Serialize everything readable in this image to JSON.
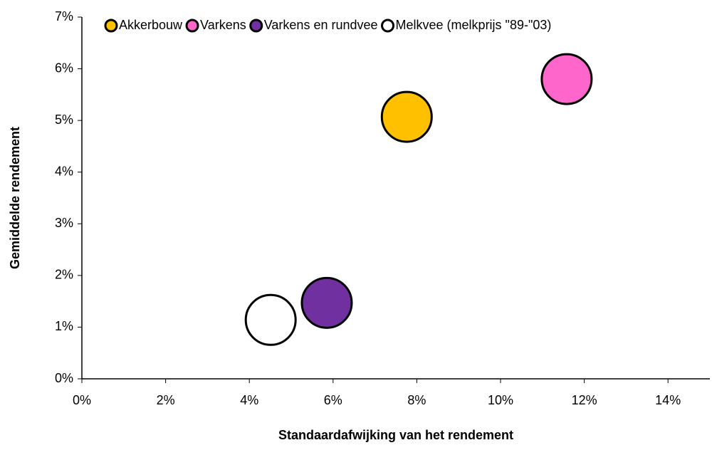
{
  "chart_data": {
    "type": "scatter",
    "xlabel": "Standaardafwijking van het rendement",
    "ylabel": "Gemiddelde rendement",
    "xlim": [
      0,
      15
    ],
    "xticks": [
      {
        "value": 0,
        "label": "0%"
      },
      {
        "value": 2,
        "label": "2%"
      },
      {
        "value": 4,
        "label": "4%"
      },
      {
        "value": 6,
        "label": "6%"
      },
      {
        "value": 8,
        "label": "8%"
      },
      {
        "value": 10,
        "label": "10%"
      },
      {
        "value": 12,
        "label": "12%"
      },
      {
        "value": 14,
        "label": "14%"
      }
    ],
    "ylim": [
      0,
      7
    ],
    "yticks": [
      {
        "value": 0,
        "label": "0%"
      },
      {
        "value": 1,
        "label": "1%"
      },
      {
        "value": 2,
        "label": "2%"
      },
      {
        "value": 3,
        "label": "3%"
      },
      {
        "value": 4,
        "label": "4%"
      },
      {
        "value": 5,
        "label": "5%"
      },
      {
        "value": 6,
        "label": "6%"
      },
      {
        "value": 7,
        "label": "7%"
      }
    ],
    "grid": false,
    "legend": "top",
    "series": [
      {
        "name": "Akkerbouw",
        "color": "#FFC000",
        "x": [
          7.76
        ],
        "values": [
          5.07
        ]
      },
      {
        "name": "Varkens",
        "color": "#FF66CC",
        "x": [
          11.58
        ],
        "values": [
          5.8
        ]
      },
      {
        "name": "Varkens en rundvee",
        "color": "#7030A0",
        "x": [
          5.85
        ],
        "values": [
          1.47
        ]
      },
      {
        "name": "Melkvee (melkprijs \"89-\"03)",
        "color": "#FFFFFF",
        "x": [
          4.51
        ],
        "values": [
          1.14
        ]
      }
    ]
  }
}
